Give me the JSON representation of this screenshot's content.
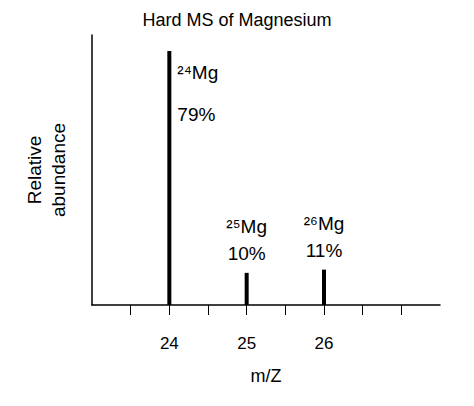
{
  "chart_data": {
    "type": "bar",
    "title": "Hard MS of Magnesium",
    "x_label": "m/Z",
    "y_label": "Relative abundance",
    "x": [
      24,
      25,
      26
    ],
    "values": [
      79,
      10,
      11
    ],
    "labels": [
      "²⁴Mg",
      "²⁵Mg",
      "²⁶Mg"
    ],
    "value_labels": [
      "79%",
      "10%",
      "11%"
    ],
    "data_labels": true,
    "color": "#000000",
    "xlim": [
      23,
      27.5
    ],
    "xticks": [
      {
        "value": 23.5,
        "label": null
      },
      24,
      {
        "value": 24.5,
        "label": null
      },
      25,
      {
        "value": 25.5,
        "label": null
      },
      26,
      {
        "value": 26.5,
        "label": null
      },
      {
        "value": 27,
        "label": null
      }
    ],
    "ylim": [
      0,
      84
    ],
    "tick_labels": "x",
    "grid": false
  }
}
